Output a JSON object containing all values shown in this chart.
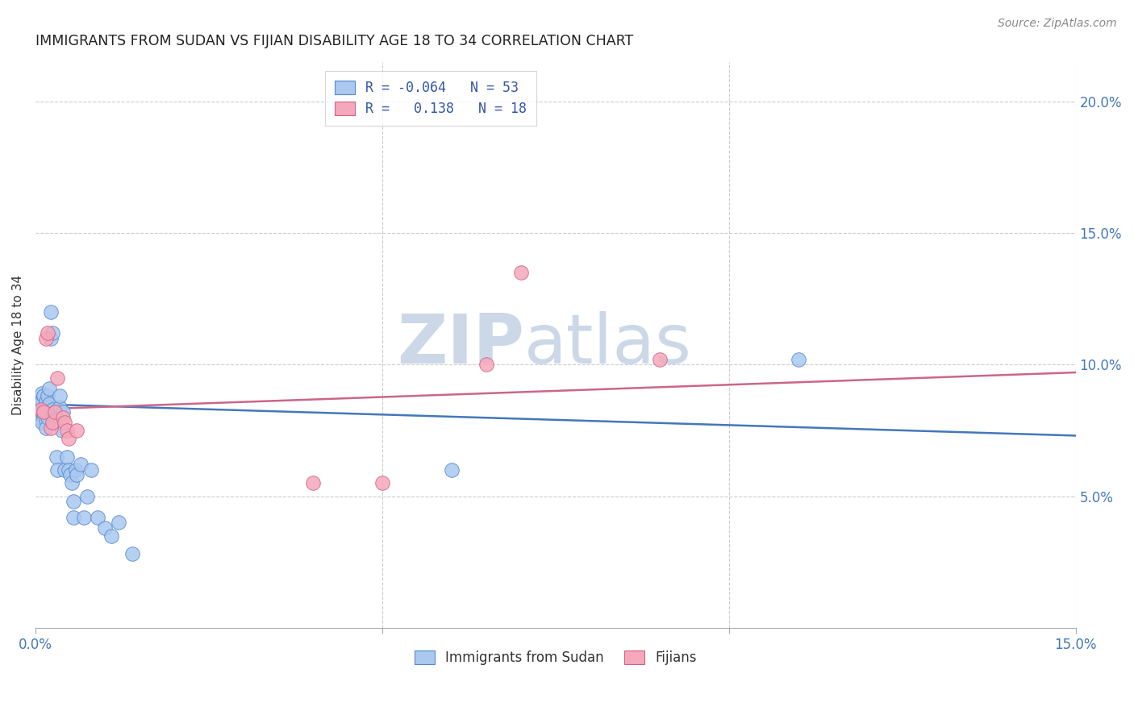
{
  "title": "IMMIGRANTS FROM SUDAN VS FIJIAN DISABILITY AGE 18 TO 34 CORRELATION CHART",
  "source": "Source: ZipAtlas.com",
  "ylabel": "Disability Age 18 to 34",
  "sudan_color": "#aac8f0",
  "sudan_edge_color": "#5588cc",
  "fijian_color": "#f5a8bc",
  "fijian_edge_color": "#d06080",
  "sudan_line_color": "#4477bb",
  "fijian_line_color": "#cc6688",
  "background_color": "#ffffff",
  "watermark_color": "#ccd8e8",
  "grid_color": "#cccccc",
  "tick_color": "#4477bb",
  "xlim": [
    0.0,
    0.15
  ],
  "ylim": [
    0.0,
    0.215
  ],
  "sudan_x": [
    0.0005,
    0.0005,
    0.0005,
    0.0008,
    0.0008,
    0.001,
    0.001,
    0.001,
    0.001,
    0.0012,
    0.0012,
    0.0015,
    0.0015,
    0.0015,
    0.0015,
    0.0018,
    0.0018,
    0.0018,
    0.002,
    0.002,
    0.002,
    0.0022,
    0.0022,
    0.0025,
    0.0025,
    0.0028,
    0.0028,
    0.003,
    0.0032,
    0.0035,
    0.0035,
    0.0038,
    0.004,
    0.0042,
    0.0045,
    0.0048,
    0.005,
    0.0052,
    0.0055,
    0.0055,
    0.0058,
    0.006,
    0.0065,
    0.007,
    0.0075,
    0.008,
    0.009,
    0.01,
    0.011,
    0.012,
    0.014,
    0.06,
    0.11
  ],
  "sudan_y": [
    0.083,
    0.08,
    0.087,
    0.082,
    0.086,
    0.082,
    0.078,
    0.086,
    0.089,
    0.083,
    0.088,
    0.083,
    0.086,
    0.079,
    0.076,
    0.088,
    0.084,
    0.08,
    0.091,
    0.085,
    0.082,
    0.12,
    0.11,
    0.112,
    0.083,
    0.082,
    0.079,
    0.065,
    0.06,
    0.084,
    0.088,
    0.075,
    0.082,
    0.06,
    0.065,
    0.06,
    0.058,
    0.055,
    0.042,
    0.048,
    0.06,
    0.058,
    0.062,
    0.042,
    0.05,
    0.06,
    0.042,
    0.038,
    0.035,
    0.04,
    0.028,
    0.06,
    0.102
  ],
  "fijian_x": [
    0.0008,
    0.0012,
    0.0015,
    0.0018,
    0.0022,
    0.0025,
    0.0028,
    0.0032,
    0.004,
    0.0042,
    0.0045,
    0.0048,
    0.006,
    0.04,
    0.05,
    0.065,
    0.07,
    0.09
  ],
  "fijian_y": [
    0.083,
    0.082,
    0.11,
    0.112,
    0.076,
    0.078,
    0.082,
    0.095,
    0.08,
    0.078,
    0.075,
    0.072,
    0.075,
    0.055,
    0.055,
    0.1,
    0.135,
    0.102
  ],
  "sudan_line_x": [
    0.0,
    0.15
  ],
  "sudan_line_y": [
    0.085,
    0.073
  ],
  "fijian_line_x": [
    0.0,
    0.15
  ],
  "fijian_line_y": [
    0.083,
    0.097
  ],
  "right_yticks": [
    0.05,
    0.1,
    0.15,
    0.2
  ],
  "right_ytick_labels": [
    "5.0%",
    "10.0%",
    "15.0%",
    "20.0%"
  ],
  "legend_r1_label": "R = -0.064   N = 53",
  "legend_r2_label": "R =   0.138   N = 18",
  "bottom_legend_labels": [
    "Immigrants from Sudan",
    "Fijians"
  ]
}
